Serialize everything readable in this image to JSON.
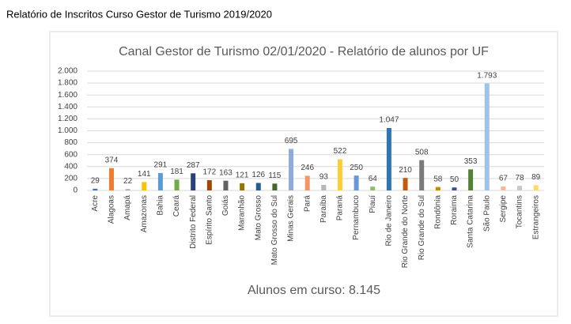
{
  "page_title": "Relatório de Inscritos Curso Gestor de Turismo 2019/2020",
  "chart_data": {
    "type": "bar",
    "title": "Canal Gestor de Turismo 02/01/2020 - Relatório de alunos por UF",
    "annotation": "Alunos em curso: 8.145",
    "categories": [
      "Acre",
      "Alagoas",
      "Amapá",
      "Amazonas",
      "Bahia",
      "Ceará",
      "Distrito Federal",
      "Espírito Santo",
      "Goiás",
      "Maranhão",
      "Mato Grosso",
      "Mato Grosso do Sul",
      "Minas Gerais",
      "Pará",
      "Paraíba",
      "Paraná",
      "Pernambuco",
      "Piauí",
      "Rio de Janeiro",
      "Rio Grande do Norte",
      "Rio Grande do Sul",
      "Rondônia",
      "Roraima",
      "Santa Catarina",
      "São Paulo",
      "Sergipe",
      "Tocantins",
      "Estrangeiros"
    ],
    "values": [
      29,
      374,
      22,
      141,
      291,
      181,
      287,
      172,
      163,
      121,
      126,
      115,
      695,
      246,
      93,
      522,
      250,
      64,
      1047,
      210,
      508,
      58,
      50,
      353,
      1793,
      67,
      78,
      89
    ],
    "value_labels": [
      "29",
      "374",
      "22",
      "141",
      "291",
      "181",
      "287",
      "172",
      "163",
      "121",
      "126",
      "115",
      "695",
      "246",
      "93",
      "522",
      "250",
      "64",
      "1.047",
      "210",
      "508",
      "58",
      "50",
      "353",
      "1.793",
      "67",
      "78",
      "89"
    ],
    "colors": [
      "#4472c4",
      "#ed7d31",
      "#a5a5a5",
      "#ffc000",
      "#5b9bd5",
      "#70ad47",
      "#264478",
      "#9e480e",
      "#636363",
      "#997300",
      "#255e91",
      "#43682b",
      "#8faadc",
      "#f4956a",
      "#b7b7b7",
      "#ffcd33",
      "#6b96d6",
      "#8cc168",
      "#2e75b6",
      "#c65911",
      "#7b7b7b",
      "#bf8f00",
      "#2f5597",
      "#548235",
      "#9dc3e6",
      "#f8b998",
      "#c9c9c9",
      "#ffd966"
    ],
    "ylim": [
      0,
      2000
    ],
    "yticks": [
      0,
      200,
      400,
      600,
      800,
      {
        "value": 1000,
        "label": "1.000"
      },
      {
        "value": 1200,
        "label": "1.200"
      },
      {
        "value": 1400,
        "label": "1.400"
      },
      {
        "value": 1600,
        "label": "1.600"
      },
      {
        "value": 1800,
        "label": "1.800"
      },
      {
        "value": 2000,
        "label": "2.000"
      }
    ],
    "grid": true
  }
}
